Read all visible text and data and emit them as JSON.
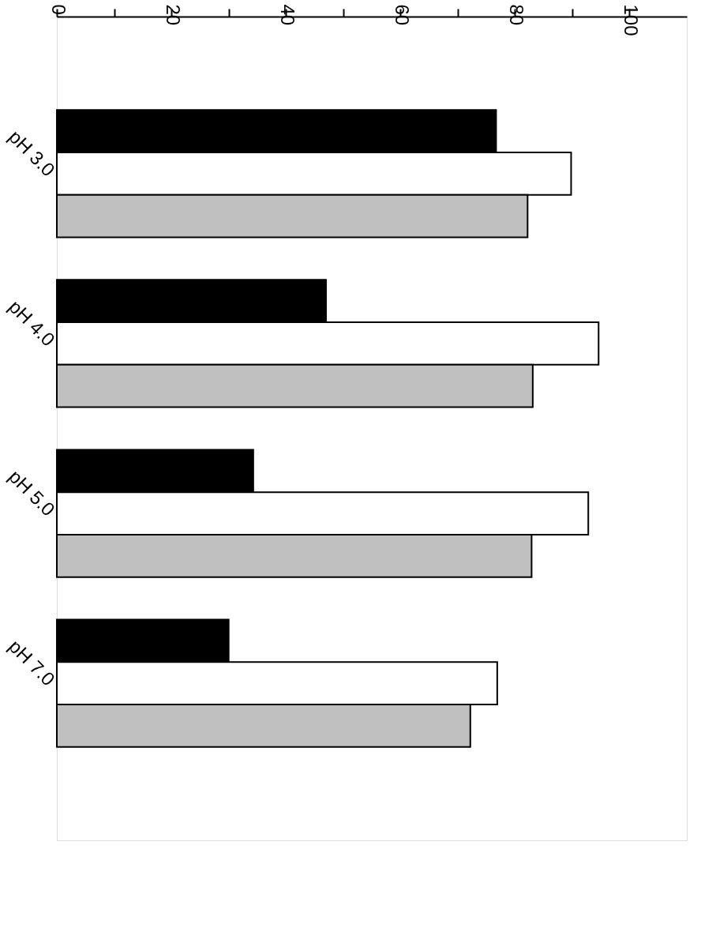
{
  "chart_data": {
    "type": "bar",
    "orientation": "horizontal",
    "categories": [
      "pH 3.0",
      "pH 4.0",
      "pH 5.0",
      "pH 7.0"
    ],
    "series": [
      {
        "color": "#000000",
        "values": [
          76.7,
          47,
          34.3,
          30
        ]
      },
      {
        "color": "#ffffff",
        "values": [
          89.8,
          94.6,
          92.8,
          76.9
        ]
      },
      {
        "color": "#c0c0c0",
        "values": [
          82.2,
          83.1,
          82.9,
          72.2
        ]
      }
    ],
    "xlim": [
      0,
      110
    ],
    "xticks": [
      0,
      {
        "value": 10,
        "label": null
      },
      20,
      {
        "value": 30,
        "label": null
      },
      40,
      {
        "value": 50,
        "label": null
      },
      60,
      {
        "value": 70,
        "label": null
      },
      80,
      {
        "value": 90,
        "label": null
      },
      100
    ],
    "grid": false,
    "legend": false
  }
}
